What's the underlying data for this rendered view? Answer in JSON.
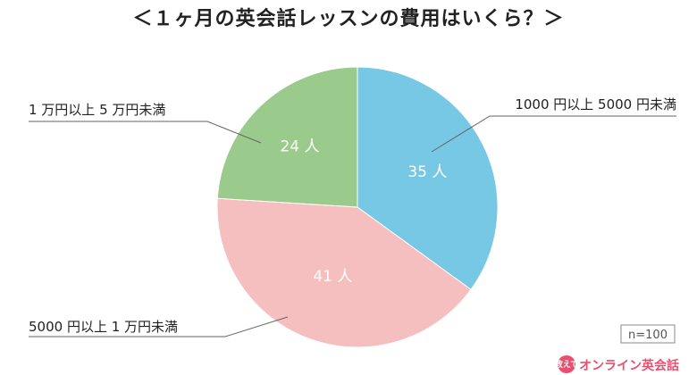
{
  "chart_data": {
    "type": "pie",
    "title": "＜１ヶ月の英会話レッスンの費用はいくら？＞",
    "unit": "人",
    "slices": [
      {
        "label": "1000 円以上 5000 円未満",
        "value": 35,
        "value_label": "35 人",
        "color": "#76c8e4"
      },
      {
        "label": "5000 円以上 1 万円未満",
        "value": 41,
        "value_label": "41 人",
        "color": "#f6bfbf"
      },
      {
        "label": "1 万円以上 5 万円未満",
        "value": 24,
        "value_label": "24 人",
        "color": "#9bcb8c"
      }
    ],
    "sample_size": "n=100"
  },
  "logo": {
    "badge": "教えて",
    "text": "オンライン英会話"
  }
}
